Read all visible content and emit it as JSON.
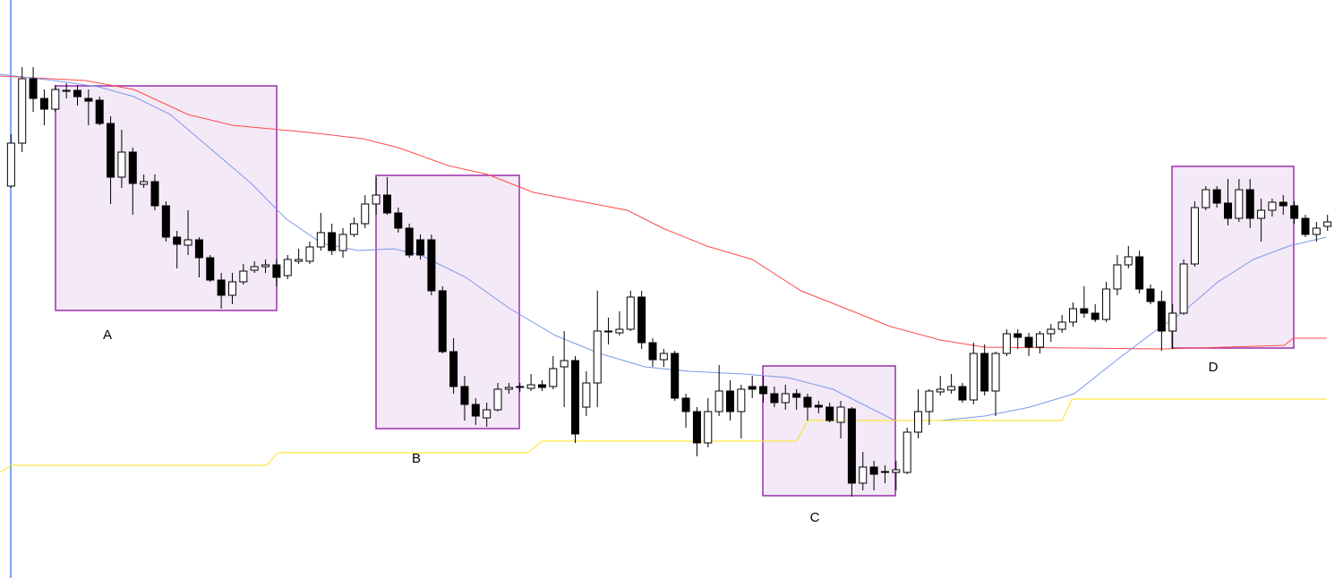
{
  "chart_data": {
    "type": "candlestick",
    "xlim": [
      -1,
      120.4
    ],
    "ylim": [
      0,
      646
    ],
    "up_color": "#ffffff",
    "down_color": "#000000",
    "annotations": [
      "A",
      "B",
      "C",
      "D"
    ],
    "open": [
      438,
      486,
      558,
      536,
      524,
      545,
      545,
      536,
      534,
      508,
      448,
      476,
      440,
      443,
      416,
      381,
      372,
      378,
      358,
      333,
      316,
      331,
      344,
      348,
      350,
      338,
      354,
      354,
      370,
      386,
      366,
      384,
      396,
      418,
      428,
      408,
      391,
      378,
      378,
      321,
      253,
      214,
      194,
      179,
      188,
      211,
      213,
      212,
      216,
      214,
      236,
      243,
      191,
      218,
      275,
      274,
      278,
      314,
      263,
      244,
      251,
      201,
      186,
      151,
      186,
      209,
      186,
      214,
      214,
      206,
      196,
      206,
      202,
      193,
      191,
      174,
      189,
      106,
      124,
      119,
      118,
      118,
      163,
      186,
      208,
      210,
      214,
      199,
      251,
      209,
      251,
      273,
      269,
      258,
      273,
      278,
      286,
      301,
      296,
      289,
      323,
      350,
      359,
      323,
      309,
      276,
      296,
      351,
      414,
      434,
      419,
      402,
      434,
      402,
      411,
      420,
      416,
      402,
      384,
      393
    ],
    "close": [
      486,
      558,
      536,
      524,
      546,
      544,
      538,
      533,
      508,
      448,
      476,
      441,
      443,
      416,
      381,
      373,
      378,
      358,
      333,
      316,
      331,
      343,
      348,
      350,
      336,
      356,
      356,
      370,
      386,
      366,
      384,
      396,
      418,
      428,
      408,
      391,
      361,
      361,
      321,
      253,
      214,
      194,
      181,
      188,
      211,
      213,
      214,
      216,
      213,
      234,
      243,
      161,
      218,
      276,
      276,
      278,
      314,
      263,
      244,
      251,
      201,
      186,
      151,
      186,
      209,
      186,
      211,
      211,
      206,
      196,
      206,
      202,
      191,
      191,
      176,
      191,
      106,
      124,
      116,
      118,
      121,
      163,
      186,
      209,
      211,
      214,
      199,
      251,
      209,
      251,
      273,
      269,
      258,
      273,
      278,
      286,
      301,
      296,
      289,
      323,
      350,
      359,
      323,
      309,
      276,
      296,
      351,
      414,
      434,
      419,
      402,
      434,
      402,
      411,
      420,
      416,
      402,
      384,
      391,
      398
    ],
    "high": [
      496,
      571,
      571,
      546,
      551,
      553,
      551,
      546,
      538,
      516,
      501,
      481,
      451,
      451,
      421,
      388,
      411,
      381,
      361,
      341,
      341,
      351,
      354,
      356,
      356,
      361,
      368,
      376,
      408,
      396,
      391,
      403,
      428,
      448,
      448,
      414,
      396,
      384,
      384,
      326,
      268,
      226,
      201,
      196,
      218,
      218,
      218,
      228,
      221,
      248,
      276,
      248,
      231,
      321,
      291,
      298,
      321,
      321,
      268,
      256,
      254,
      206,
      191,
      201,
      238,
      221,
      216,
      226,
      226,
      214,
      216,
      211,
      206,
      198,
      196,
      198,
      191,
      141,
      131,
      126,
      131,
      168,
      211,
      211,
      226,
      228,
      218,
      263,
      261,
      253,
      278,
      278,
      274,
      276,
      284,
      294,
      308,
      326,
      306,
      331,
      361,
      371,
      366,
      328,
      321,
      306,
      356,
      421,
      438,
      438,
      446,
      446,
      446,
      424,
      424,
      428,
      421,
      406,
      398,
      406
    ],
    "low": [
      436,
      476,
      521,
      506,
      521,
      536,
      528,
      506,
      506,
      418,
      436,
      406,
      436,
      411,
      376,
      346,
      361,
      336,
      331,
      301,
      306,
      328,
      341,
      341,
      326,
      334,
      351,
      351,
      366,
      361,
      358,
      381,
      391,
      406,
      406,
      386,
      358,
      356,
      316,
      251,
      206,
      176,
      171,
      169,
      186,
      206,
      208,
      209,
      209,
      211,
      191,
      151,
      181,
      191,
      261,
      271,
      276,
      256,
      236,
      236,
      198,
      168,
      136,
      146,
      181,
      176,
      156,
      201,
      196,
      191,
      188,
      188,
      176,
      184,
      174,
      156,
      91,
      98,
      98,
      106,
      98,
      116,
      156,
      171,
      204,
      206,
      196,
      194,
      204,
      181,
      248,
      256,
      248,
      251,
      264,
      274,
      281,
      291,
      286,
      286,
      316,
      346,
      318,
      306,
      254,
      256,
      294,
      348,
      411,
      414,
      394,
      398,
      391,
      376,
      404,
      406,
      396,
      381,
      376,
      388
    ],
    "lines": [
      {
        "color": "#ff4a4a",
        "x": [
          -1,
          6.7,
          11.1,
          16.0,
          20.0,
          26.9,
          31.8,
          35.0,
          39.5,
          43.1,
          47.2,
          55.7,
          58.9,
          62.9,
          67.0,
          71.4,
          75.5,
          79.5,
          84.0,
          88.0,
          104.2,
          115.1,
          115.9,
          118.9
        ],
        "values": [
          561,
          556,
          546,
          518,
          506,
          498,
          491,
          481,
          461,
          451,
          431,
          411,
          391,
          371,
          356,
          321,
          301,
          281,
          266,
          258,
          256,
          260,
          268,
          268
        ]
      },
      {
        "color": "#7b98ec",
        "x": [
          -1,
          3.86,
          7.9,
          11.1,
          14.4,
          18.4,
          21.7,
          24.9,
          28.1,
          31.4,
          34.6,
          37.0,
          41.1,
          45.1,
          49.2,
          53.2,
          57.3,
          61.3,
          66.2,
          70.2,
          74.3,
          77.5,
          79.9,
          84.0,
          88.0,
          92.1,
          96.1,
          100.2,
          103.4,
          105.8,
          109.1,
          112.3,
          115.5,
          118.9
        ],
        "values": [
          563,
          556,
          549,
          538,
          518,
          476,
          441,
          401,
          374,
          366,
          368,
          361,
          336,
          301,
          271,
          251,
          236,
          231,
          228,
          224,
          211,
          191,
          176,
          176,
          181,
          191,
          206,
          246,
          276,
          296,
          331,
          356,
          371,
          381
        ]
      },
      {
        "color": "#ffe21a",
        "x": [
          -1,
          0,
          23.1,
          24.1,
          46.7,
          48.0,
          71.0,
          72.0,
          95.0,
          95.9,
          118.9
        ],
        "values": [
          118,
          126,
          126,
          140,
          140,
          153,
          153,
          176,
          176,
          200,
          200
        ]
      }
    ]
  }
}
